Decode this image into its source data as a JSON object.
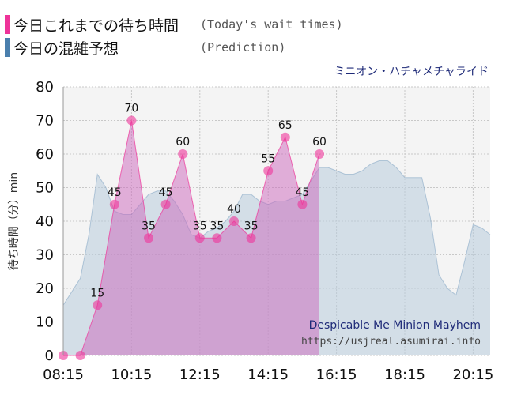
{
  "legend": {
    "today_label": "今日これまでの待ち時間",
    "today_sub": "(Today's wait times)",
    "prediction_label": "今日の混雑予想",
    "prediction_sub": "(Prediction)"
  },
  "ride_name_jp": "ミニオン・ハチャメチャライド",
  "watermark": {
    "ride_name_en": "Despicable Me Minion Mayhem",
    "url": "https://usjreal.asumirai.info"
  },
  "colors": {
    "today": "#ee3399",
    "today_fill": "#cc66bb",
    "prediction": "#4a7fad",
    "prediction_fill": "#b8ccdc",
    "plot_bg": "#f4f4f4",
    "ride_name": "#1e2a78"
  },
  "chart_data": {
    "type": "area",
    "ylabel": "待ち時間（分）min",
    "ylim": [
      0,
      80
    ],
    "yticks": [
      0,
      10,
      20,
      30,
      40,
      50,
      60,
      70,
      80
    ],
    "xlim": [
      "08:15",
      "20:45"
    ],
    "xtick_labels": [
      "08:15",
      "10:15",
      "12:15",
      "14:15",
      "16:15",
      "18:15",
      "20:15"
    ],
    "grid": true,
    "series": [
      {
        "name": "今日これまでの待ち時間",
        "x": [
          "08:15",
          "08:45",
          "09:15",
          "09:45",
          "10:15",
          "10:45",
          "11:15",
          "11:45",
          "12:15",
          "12:45",
          "13:15",
          "13:45",
          "14:15",
          "14:45",
          "15:15",
          "15:45"
        ],
        "values": [
          0,
          0,
          15,
          45,
          70,
          35,
          45,
          60,
          35,
          35,
          40,
          35,
          55,
          65,
          45,
          60
        ]
      },
      {
        "name": "今日の混雑予想",
        "x": [
          "08:15",
          "08:45",
          "09:00",
          "09:15",
          "09:30",
          "09:45",
          "10:00",
          "10:15",
          "10:30",
          "10:45",
          "11:00",
          "11:15",
          "11:30",
          "11:45",
          "12:00",
          "12:15",
          "12:30",
          "12:45",
          "13:00",
          "13:15",
          "13:30",
          "13:45",
          "14:00",
          "14:15",
          "14:30",
          "14:45",
          "15:00",
          "15:15",
          "15:30",
          "15:45",
          "16:00",
          "16:15",
          "16:30",
          "16:45",
          "17:00",
          "17:15",
          "17:30",
          "17:45",
          "18:00",
          "18:15",
          "18:30",
          "18:45",
          "19:00",
          "19:15",
          "19:30",
          "19:45",
          "20:00",
          "20:15",
          "20:30",
          "20:45"
        ],
        "values": [
          15,
          23,
          36,
          54,
          50,
          43,
          42,
          42,
          45,
          48,
          49,
          49,
          46,
          42,
          36,
          35,
          37,
          38,
          40,
          43,
          48,
          48,
          46,
          45,
          46,
          46,
          47,
          48,
          52,
          56,
          56,
          55,
          54,
          54,
          55,
          57,
          58,
          58,
          56,
          53,
          53,
          53,
          41,
          24,
          20,
          18,
          28,
          39,
          38,
          36
        ]
      }
    ]
  }
}
